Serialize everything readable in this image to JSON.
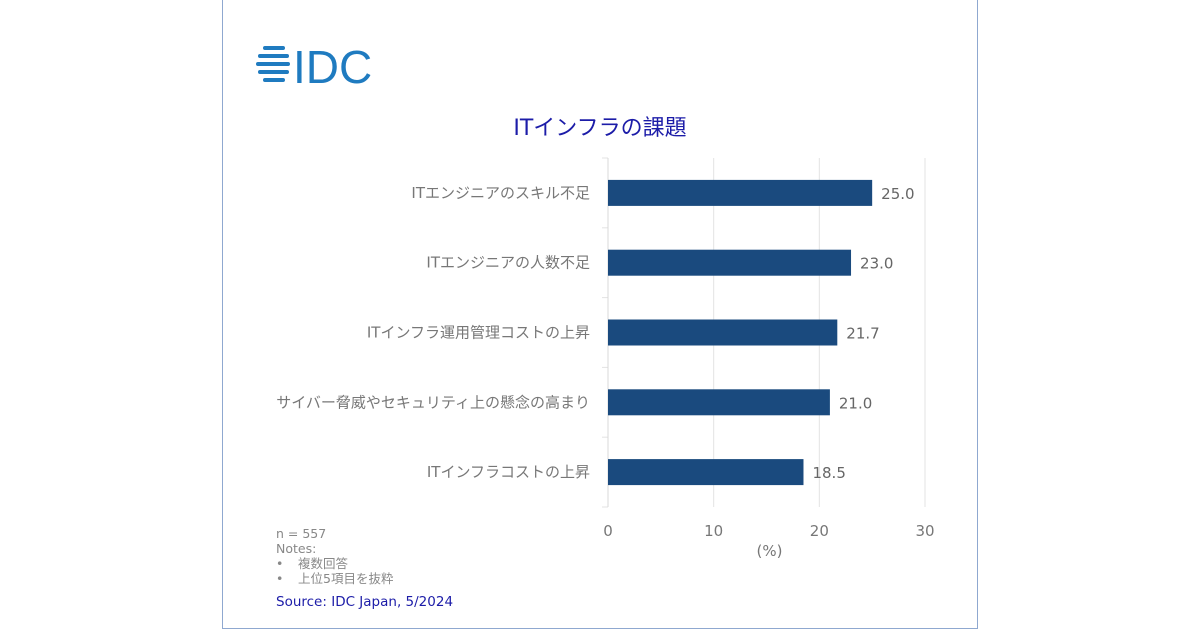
{
  "logo": {
    "text": "IDC",
    "color": "#1f7bc0"
  },
  "chart_data": {
    "type": "bar",
    "orientation": "horizontal",
    "title": "ITインフラの課題",
    "categories": [
      "ITエンジニアのスキル不足",
      "ITエンジニアの人数不足",
      "ITインフラ運用管理コストの上昇",
      "サイバー脅威やセキュリティ上の懸念の高まり",
      "ITインフラコストの上昇"
    ],
    "values": [
      25.0,
      23.0,
      21.7,
      21.0,
      18.5
    ],
    "value_labels": [
      "25.0",
      "23.0",
      "21.7",
      "21.0",
      "18.5"
    ],
    "xlabel": "(%)",
    "xlim": [
      0,
      30
    ],
    "xticks": [
      "0",
      "10",
      "20",
      "30"
    ],
    "grid": true,
    "bar_color": "#1a4a7e"
  },
  "notes": {
    "n": "n = 557",
    "heading": "Notes:",
    "bullet": "•",
    "items": [
      "複数回答",
      "上位5項目を抜粋"
    ]
  },
  "source": "Source: IDC Japan, 5/2024"
}
